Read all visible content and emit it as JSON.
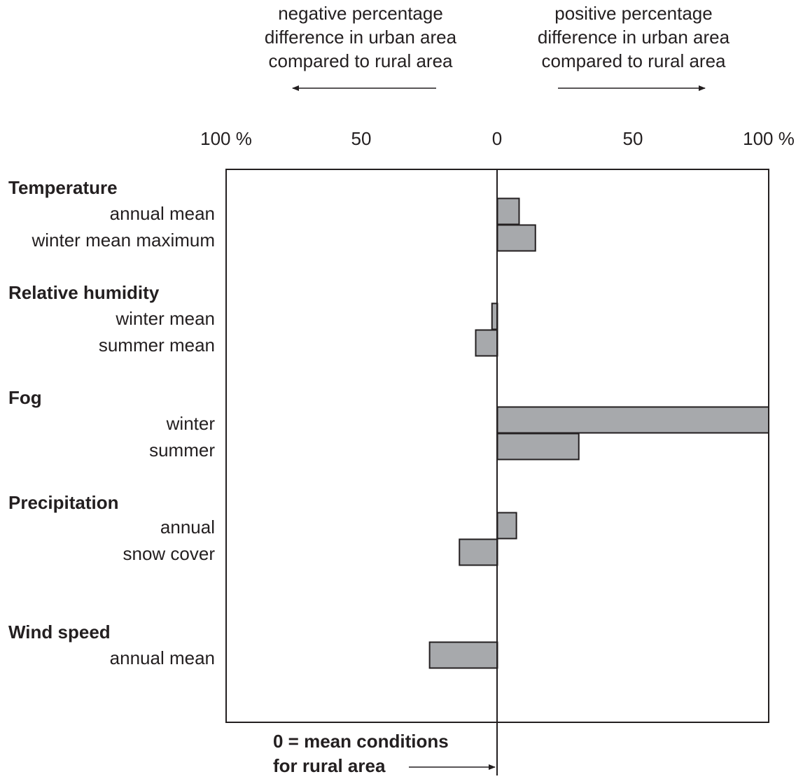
{
  "chart_data": {
    "type": "bar",
    "orientation": "horizontal",
    "header_left": [
      "negative percentage",
      "difference in urban area",
      "compared to rural area"
    ],
    "header_right": [
      "positive percentage",
      "difference in urban area",
      "compared to rural area"
    ],
    "x_ticks": [
      "100 %",
      "50",
      "0",
      "50",
      "100 %"
    ],
    "xlim": [
      -100,
      100
    ],
    "groups": [
      {
        "name": "Temperature",
        "items": [
          {
            "label": "annual mean",
            "value": 8
          },
          {
            "label": "winter mean maximum",
            "value": 14
          }
        ]
      },
      {
        "name": "Relative humidity",
        "items": [
          {
            "label": "winter mean",
            "value": -2
          },
          {
            "label": "summer mean",
            "value": -8
          }
        ]
      },
      {
        "name": "Fog",
        "items": [
          {
            "label": "winter",
            "value": 100
          },
          {
            "label": "summer",
            "value": 30
          }
        ]
      },
      {
        "name": "Precipitation",
        "items": [
          {
            "label": "annual",
            "value": 7
          },
          {
            "label": "snow cover",
            "value": -14
          }
        ]
      },
      {
        "name": "Wind speed",
        "items": [
          {
            "label": "annual mean",
            "value": -25
          }
        ]
      }
    ],
    "zero_note": [
      "0 = mean conditions",
      "for rural area"
    ],
    "bar_color": "#a7a9ac",
    "line_color": "#231f20",
    "grid": false
  }
}
